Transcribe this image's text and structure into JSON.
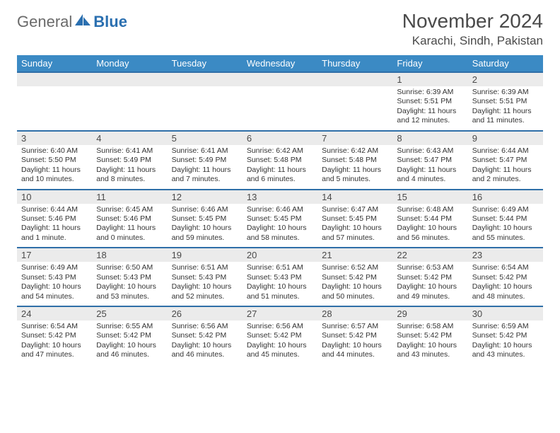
{
  "brand": {
    "part1": "General",
    "part2": "Blue"
  },
  "title": "November 2024",
  "location": "Karachi, Sindh, Pakistan",
  "colors": {
    "header_bg": "#3b8ac4",
    "row_divider": "#2f6fa8",
    "daynum_bg": "#ebebeb",
    "text": "#333333",
    "brand_gray": "#6a6a6a",
    "brand_blue": "#2a6fb0"
  },
  "typography": {
    "title_fontsize": 28,
    "location_fontsize": 17,
    "dayheader_fontsize": 13,
    "body_fontsize": 10.5
  },
  "weekdays": [
    "Sunday",
    "Monday",
    "Tuesday",
    "Wednesday",
    "Thursday",
    "Friday",
    "Saturday"
  ],
  "weeks": [
    [
      {
        "n": "",
        "sunrise": "",
        "sunset": "",
        "daylight": ""
      },
      {
        "n": "",
        "sunrise": "",
        "sunset": "",
        "daylight": ""
      },
      {
        "n": "",
        "sunrise": "",
        "sunset": "",
        "daylight": ""
      },
      {
        "n": "",
        "sunrise": "",
        "sunset": "",
        "daylight": ""
      },
      {
        "n": "",
        "sunrise": "",
        "sunset": "",
        "daylight": ""
      },
      {
        "n": "1",
        "sunrise": "Sunrise: 6:39 AM",
        "sunset": "Sunset: 5:51 PM",
        "daylight": "Daylight: 11 hours and 12 minutes."
      },
      {
        "n": "2",
        "sunrise": "Sunrise: 6:39 AM",
        "sunset": "Sunset: 5:51 PM",
        "daylight": "Daylight: 11 hours and 11 minutes."
      }
    ],
    [
      {
        "n": "3",
        "sunrise": "Sunrise: 6:40 AM",
        "sunset": "Sunset: 5:50 PM",
        "daylight": "Daylight: 11 hours and 10 minutes."
      },
      {
        "n": "4",
        "sunrise": "Sunrise: 6:41 AM",
        "sunset": "Sunset: 5:49 PM",
        "daylight": "Daylight: 11 hours and 8 minutes."
      },
      {
        "n": "5",
        "sunrise": "Sunrise: 6:41 AM",
        "sunset": "Sunset: 5:49 PM",
        "daylight": "Daylight: 11 hours and 7 minutes."
      },
      {
        "n": "6",
        "sunrise": "Sunrise: 6:42 AM",
        "sunset": "Sunset: 5:48 PM",
        "daylight": "Daylight: 11 hours and 6 minutes."
      },
      {
        "n": "7",
        "sunrise": "Sunrise: 6:42 AM",
        "sunset": "Sunset: 5:48 PM",
        "daylight": "Daylight: 11 hours and 5 minutes."
      },
      {
        "n": "8",
        "sunrise": "Sunrise: 6:43 AM",
        "sunset": "Sunset: 5:47 PM",
        "daylight": "Daylight: 11 hours and 4 minutes."
      },
      {
        "n": "9",
        "sunrise": "Sunrise: 6:44 AM",
        "sunset": "Sunset: 5:47 PM",
        "daylight": "Daylight: 11 hours and 2 minutes."
      }
    ],
    [
      {
        "n": "10",
        "sunrise": "Sunrise: 6:44 AM",
        "sunset": "Sunset: 5:46 PM",
        "daylight": "Daylight: 11 hours and 1 minute."
      },
      {
        "n": "11",
        "sunrise": "Sunrise: 6:45 AM",
        "sunset": "Sunset: 5:46 PM",
        "daylight": "Daylight: 11 hours and 0 minutes."
      },
      {
        "n": "12",
        "sunrise": "Sunrise: 6:46 AM",
        "sunset": "Sunset: 5:45 PM",
        "daylight": "Daylight: 10 hours and 59 minutes."
      },
      {
        "n": "13",
        "sunrise": "Sunrise: 6:46 AM",
        "sunset": "Sunset: 5:45 PM",
        "daylight": "Daylight: 10 hours and 58 minutes."
      },
      {
        "n": "14",
        "sunrise": "Sunrise: 6:47 AM",
        "sunset": "Sunset: 5:45 PM",
        "daylight": "Daylight: 10 hours and 57 minutes."
      },
      {
        "n": "15",
        "sunrise": "Sunrise: 6:48 AM",
        "sunset": "Sunset: 5:44 PM",
        "daylight": "Daylight: 10 hours and 56 minutes."
      },
      {
        "n": "16",
        "sunrise": "Sunrise: 6:49 AM",
        "sunset": "Sunset: 5:44 PM",
        "daylight": "Daylight: 10 hours and 55 minutes."
      }
    ],
    [
      {
        "n": "17",
        "sunrise": "Sunrise: 6:49 AM",
        "sunset": "Sunset: 5:43 PM",
        "daylight": "Daylight: 10 hours and 54 minutes."
      },
      {
        "n": "18",
        "sunrise": "Sunrise: 6:50 AM",
        "sunset": "Sunset: 5:43 PM",
        "daylight": "Daylight: 10 hours and 53 minutes."
      },
      {
        "n": "19",
        "sunrise": "Sunrise: 6:51 AM",
        "sunset": "Sunset: 5:43 PM",
        "daylight": "Daylight: 10 hours and 52 minutes."
      },
      {
        "n": "20",
        "sunrise": "Sunrise: 6:51 AM",
        "sunset": "Sunset: 5:43 PM",
        "daylight": "Daylight: 10 hours and 51 minutes."
      },
      {
        "n": "21",
        "sunrise": "Sunrise: 6:52 AM",
        "sunset": "Sunset: 5:42 PM",
        "daylight": "Daylight: 10 hours and 50 minutes."
      },
      {
        "n": "22",
        "sunrise": "Sunrise: 6:53 AM",
        "sunset": "Sunset: 5:42 PM",
        "daylight": "Daylight: 10 hours and 49 minutes."
      },
      {
        "n": "23",
        "sunrise": "Sunrise: 6:54 AM",
        "sunset": "Sunset: 5:42 PM",
        "daylight": "Daylight: 10 hours and 48 minutes."
      }
    ],
    [
      {
        "n": "24",
        "sunrise": "Sunrise: 6:54 AM",
        "sunset": "Sunset: 5:42 PM",
        "daylight": "Daylight: 10 hours and 47 minutes."
      },
      {
        "n": "25",
        "sunrise": "Sunrise: 6:55 AM",
        "sunset": "Sunset: 5:42 PM",
        "daylight": "Daylight: 10 hours and 46 minutes."
      },
      {
        "n": "26",
        "sunrise": "Sunrise: 6:56 AM",
        "sunset": "Sunset: 5:42 PM",
        "daylight": "Daylight: 10 hours and 46 minutes."
      },
      {
        "n": "27",
        "sunrise": "Sunrise: 6:56 AM",
        "sunset": "Sunset: 5:42 PM",
        "daylight": "Daylight: 10 hours and 45 minutes."
      },
      {
        "n": "28",
        "sunrise": "Sunrise: 6:57 AM",
        "sunset": "Sunset: 5:42 PM",
        "daylight": "Daylight: 10 hours and 44 minutes."
      },
      {
        "n": "29",
        "sunrise": "Sunrise: 6:58 AM",
        "sunset": "Sunset: 5:42 PM",
        "daylight": "Daylight: 10 hours and 43 minutes."
      },
      {
        "n": "30",
        "sunrise": "Sunrise: 6:59 AM",
        "sunset": "Sunset: 5:42 PM",
        "daylight": "Daylight: 10 hours and 43 minutes."
      }
    ]
  ]
}
